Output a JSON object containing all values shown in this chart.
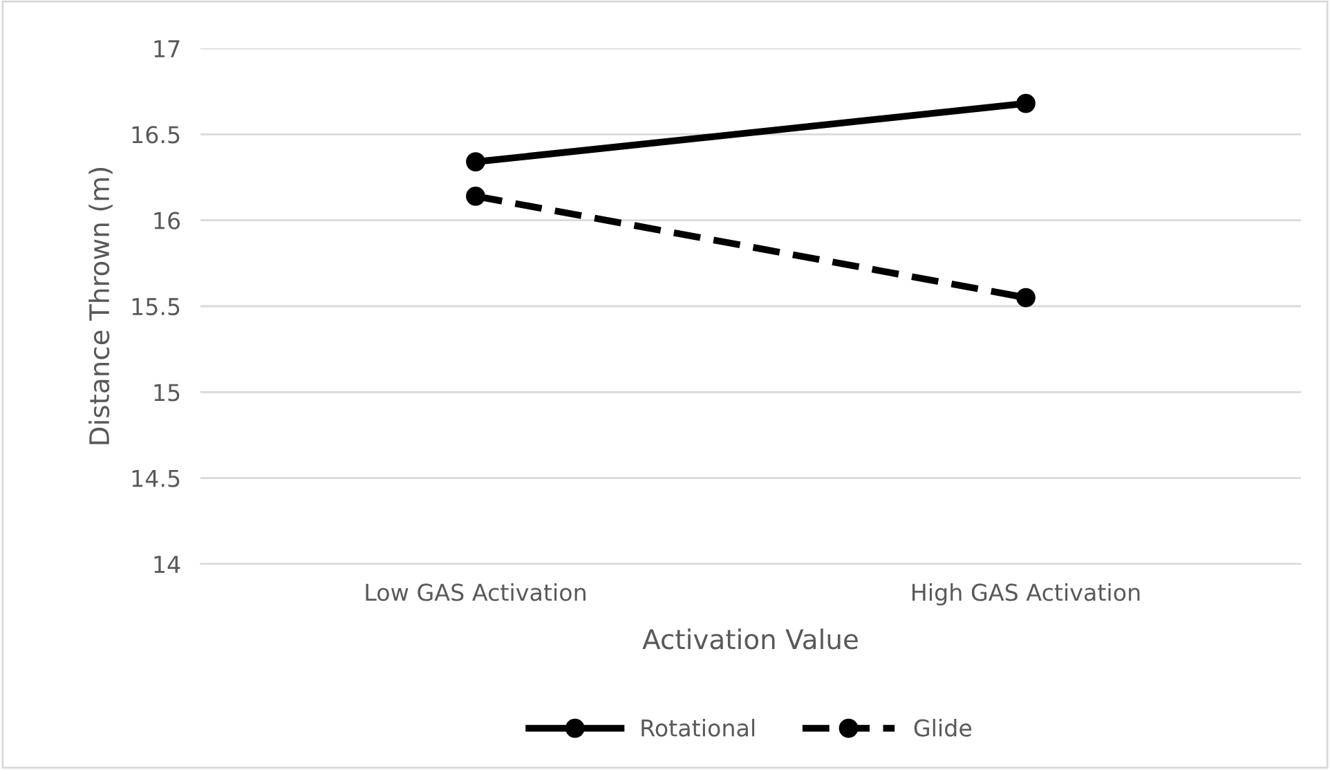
{
  "chart_data": {
    "type": "line",
    "xlabel": "Activation Value",
    "ylabel": "Distance Thrown (m)",
    "categories": [
      "Low GAS Activation",
      "High GAS Activation"
    ],
    "series": [
      {
        "name": "Rotational",
        "color": "#000000",
        "values": [
          16.34,
          16.68
        ],
        "line_style": "solid"
      },
      {
        "name": "Glide",
        "color": "#000000",
        "values": [
          16.14,
          15.55
        ],
        "line_style": "dashed"
      }
    ],
    "ylim": [
      14,
      17
    ],
    "yticks": [
      14,
      14.5,
      15,
      15.5,
      16,
      16.5,
      17
    ],
    "grid": "y",
    "legend": "bottom",
    "marker": "circle"
  }
}
